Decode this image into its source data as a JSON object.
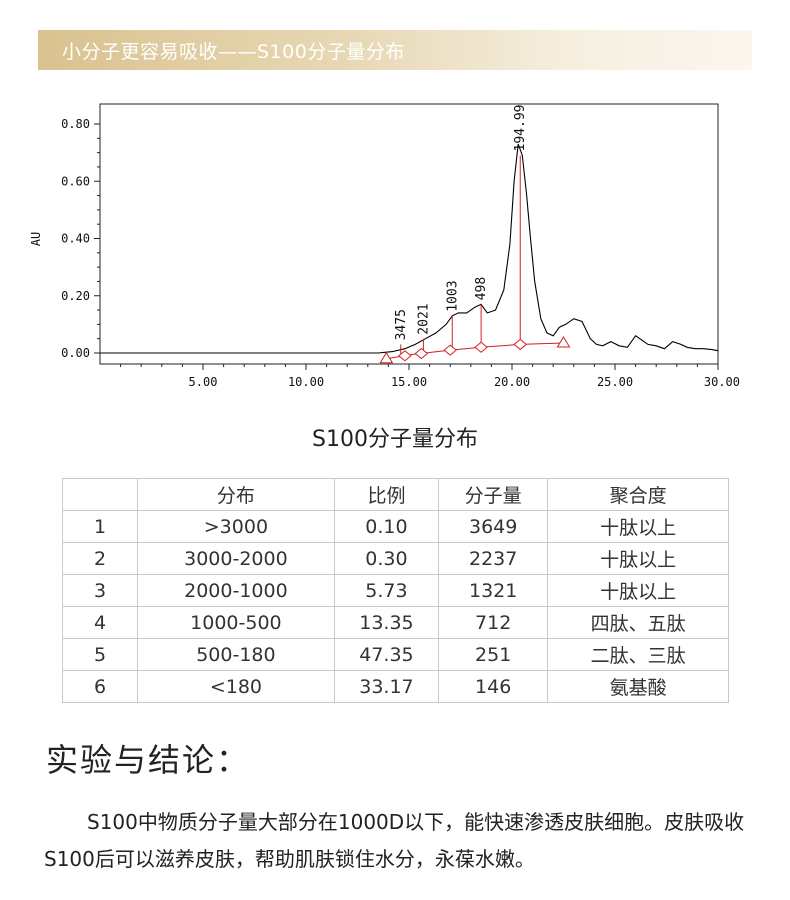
{
  "banner": {
    "title": "小分子更容易吸收——S100分子量分布"
  },
  "chart_data": {
    "type": "line",
    "ylabel": "AU",
    "xlabel": "",
    "xlim": [
      0,
      30
    ],
    "ylim": [
      -0.05,
      0.85
    ],
    "x_ticks": [
      "5.00",
      "10.00",
      "15.00",
      "20.00",
      "25.00",
      "30.00"
    ],
    "x_tick_values": [
      5,
      10,
      15,
      20,
      25,
      30
    ],
    "y_ticks": [
      "0.00",
      "0.20",
      "0.40",
      "0.60",
      "0.80"
    ],
    "y_tick_values": [
      0,
      0.2,
      0.4,
      0.6,
      0.8
    ],
    "series": [
      {
        "x": [
          0,
          13.5,
          14.2,
          14.8,
          15.3,
          15.8,
          16.3,
          16.8,
          17.1,
          17.4,
          17.8,
          18.2,
          18.5,
          18.8,
          19.2,
          19.6,
          19.9,
          20.1,
          20.3,
          20.5,
          20.7,
          20.9,
          21.1,
          21.4,
          21.7,
          22.0,
          22.3,
          22.6,
          23.0,
          23.4,
          23.8,
          24.1,
          24.4,
          24.8,
          25.2,
          25.6,
          26.0,
          26.3,
          26.6,
          27.0,
          27.4,
          27.8,
          28.2,
          28.5,
          28.9,
          29.3,
          29.7,
          30.0
        ],
        "y": [
          0.0,
          0.0,
          0.005,
          0.015,
          0.03,
          0.05,
          0.07,
          0.1,
          0.13,
          0.14,
          0.14,
          0.16,
          0.17,
          0.14,
          0.15,
          0.22,
          0.38,
          0.6,
          0.73,
          0.69,
          0.56,
          0.4,
          0.25,
          0.12,
          0.07,
          0.06,
          0.09,
          0.1,
          0.12,
          0.11,
          0.05,
          0.03,
          0.025,
          0.04,
          0.025,
          0.02,
          0.06,
          0.045,
          0.03,
          0.025,
          0.015,
          0.04,
          0.03,
          0.02,
          0.015,
          0.015,
          0.012,
          0.008
        ]
      }
    ],
    "baseline": {
      "x": [
        13.9,
        15.2,
        17.0,
        18.5,
        20.4,
        22.5
      ],
      "y": [
        -0.02,
        -0.005,
        0.01,
        0.02,
        0.03,
        0.035
      ]
    },
    "annotations": [
      {
        "label": "3475",
        "x": 14.6,
        "y_top": 0.03
      },
      {
        "label": "2021",
        "x": 15.7,
        "y_top": 0.05
      },
      {
        "label": "1003",
        "x": 17.1,
        "y_top": 0.13
      },
      {
        "label": "498",
        "x": 18.5,
        "y_top": 0.17
      },
      {
        "label": "194.99",
        "x": 20.4,
        "y_top": 0.69
      }
    ],
    "markers": [
      {
        "shape": "triangle",
        "x": 13.9
      },
      {
        "shape": "diamond",
        "x": 14.8
      },
      {
        "shape": "diamond",
        "x": 15.6
      },
      {
        "shape": "diamond",
        "x": 17.0
      },
      {
        "shape": "diamond",
        "x": 18.5
      },
      {
        "shape": "diamond",
        "x": 20.4
      },
      {
        "shape": "triangle",
        "x": 22.5
      }
    ],
    "colors": {
      "trace": "#000000",
      "integration": "#d42020"
    }
  },
  "chart_caption": "S100分子量分布",
  "table": {
    "headers": [
      "",
      "分布",
      "比例",
      "分子量",
      "聚合度"
    ],
    "rows": [
      [
        "1",
        ">3000",
        "0.10",
        "3649",
        "十肽以上"
      ],
      [
        "2",
        "3000-2000",
        "0.30",
        "2237",
        "十肽以上"
      ],
      [
        "3",
        "2000-1000",
        "5.73",
        "1321",
        "十肽以上"
      ],
      [
        "4",
        "1000-500",
        "13.35",
        "712",
        "四肽、五肽"
      ],
      [
        "5",
        "500-180",
        "47.35",
        "251",
        "二肽、三肽"
      ],
      [
        "6",
        "<180",
        "33.17",
        "146",
        "氨基酸"
      ]
    ]
  },
  "conclusion": {
    "title": "实验与结论：",
    "body": "S100中物质分子量大部分在1000D以下，能快速渗透皮肤细胞。皮肤吸收S100后可以滋养皮肤，帮助肌肤锁住水分，永葆水嫩。"
  }
}
